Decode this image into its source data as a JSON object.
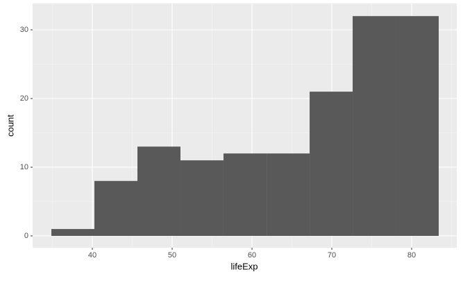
{
  "chart_data": {
    "type": "histogram",
    "xlabel": "lifeExp",
    "ylabel": "count",
    "bins": [
      34.87,
      40.26,
      45.65,
      51.04,
      56.43,
      61.83,
      67.22,
      72.61,
      78.0,
      83.39
    ],
    "counts": [
      1,
      8,
      13,
      11,
      12,
      12,
      21,
      32,
      32
    ],
    "color": "#595959",
    "xlim": [
      32.52,
      85.65
    ],
    "ylim": [
      -1.72,
      33.84
    ],
    "xticks": [
      40,
      50,
      60,
      70,
      80
    ],
    "yticks": [
      0,
      10,
      20,
      30
    ],
    "grid": true
  }
}
